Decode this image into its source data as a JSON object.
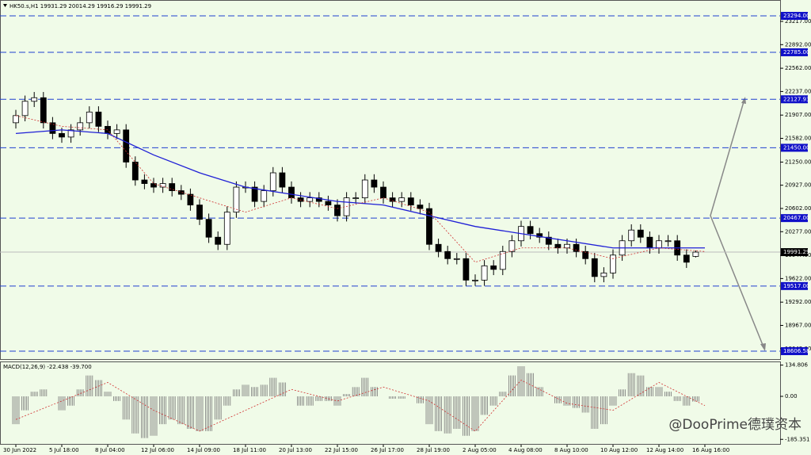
{
  "header": "HK50.s,H1  19931.29 20014.29 19916.29 19991.29",
  "watermark": "@DooPrime德璞资本",
  "chart_data": [
    {
      "type": "candlestick",
      "title": "HK50.s,H1  19931.29 20014.29 19916.29 19991.29",
      "xlabels": [
        "30 Jun 2022",
        "5 Jul 18:00",
        "8 Jul 04:00",
        "12 Jul 06:00",
        "14 Jul 09:00",
        "18 Jul 11:00",
        "20 Jul 13:00",
        "22 Jul 15:00",
        "26 Jul 17:00",
        "28 Jul 19:00",
        "2 Aug 05:00",
        "4 Aug 08:00",
        "8 Aug 10:00",
        "10 Aug 12:00",
        "12 Aug 14:00",
        "16 Aug 16:00"
      ],
      "ohlc": [
        [
          21800,
          21980,
          21720,
          21900
        ],
        [
          21900,
          22180,
          21820,
          22100
        ],
        [
          22100,
          22230,
          22020,
          22150
        ],
        [
          22150,
          22230,
          21720,
          21800
        ],
        [
          21800,
          21880,
          21570,
          21650
        ],
        [
          21650,
          21730,
          21520,
          21600
        ],
        [
          21600,
          21780,
          21520,
          21700
        ],
        [
          21700,
          21880,
          21620,
          21800
        ],
        [
          21800,
          22030,
          21720,
          21950
        ],
        [
          21950,
          22030,
          21670,
          21750
        ],
        [
          21750,
          21830,
          21570,
          21650
        ],
        [
          21650,
          21780,
          21570,
          21700
        ],
        [
          21700,
          21780,
          21170,
          21250
        ],
        [
          21250,
          21330,
          20920,
          21000
        ],
        [
          21000,
          21080,
          20870,
          20950
        ],
        [
          20950,
          21030,
          20820,
          20900
        ],
        [
          20900,
          21030,
          20820,
          20950
        ],
        [
          20950,
          21030,
          20770,
          20850
        ],
        [
          20850,
          20930,
          20720,
          20800
        ],
        [
          20800,
          20880,
          20570,
          20650
        ],
        [
          20650,
          20730,
          20370,
          20450
        ],
        [
          20450,
          20530,
          20120,
          20200
        ],
        [
          20200,
          20280,
          20020,
          20100
        ],
        [
          20100,
          20630,
          20020,
          20550
        ],
        [
          20550,
          20980,
          20470,
          20900
        ],
        [
          20900,
          20980,
          20820,
          20900
        ],
        [
          20900,
          20980,
          20620,
          20700
        ],
        [
          20700,
          20930,
          20620,
          20850
        ],
        [
          20850,
          21180,
          20770,
          21100
        ],
        [
          21100,
          21180,
          20820,
          20900
        ],
        [
          20900,
          20980,
          20670,
          20750
        ],
        [
          20750,
          20830,
          20620,
          20700
        ],
        [
          20700,
          20830,
          20620,
          20750
        ],
        [
          20750,
          20830,
          20620,
          20700
        ],
        [
          20700,
          20780,
          20570,
          20650
        ],
        [
          20650,
          20730,
          20420,
          20500
        ],
        [
          20500,
          20830,
          20420,
          20750
        ],
        [
          20750,
          20830,
          20670,
          20750
        ],
        [
          20750,
          21080,
          20670,
          21000
        ],
        [
          21000,
          21080,
          20820,
          20900
        ],
        [
          20900,
          20980,
          20670,
          20750
        ],
        [
          20750,
          20830,
          20620,
          20700
        ],
        [
          20700,
          20830,
          20620,
          20750
        ],
        [
          20750,
          20830,
          20570,
          20650
        ],
        [
          20650,
          20730,
          20520,
          20600
        ],
        [
          20600,
          20680,
          20020,
          20100
        ],
        [
          20100,
          20180,
          19920,
          20000
        ],
        [
          20000,
          20080,
          19820,
          19900
        ],
        [
          19900,
          19980,
          19820,
          19900
        ],
        [
          19900,
          19980,
          19520,
          19600
        ],
        [
          19600,
          19680,
          19520,
          19600
        ],
        [
          19600,
          19880,
          19520,
          19800
        ],
        [
          19800,
          19880,
          19670,
          19750
        ],
        [
          19750,
          20080,
          19670,
          20000
        ],
        [
          20000,
          20230,
          19920,
          20150
        ],
        [
          20150,
          20430,
          20070,
          20350
        ],
        [
          20350,
          20430,
          20170,
          20250
        ],
        [
          20250,
          20330,
          20120,
          20200
        ],
        [
          20200,
          20280,
          20020,
          20100
        ],
        [
          20100,
          20180,
          19970,
          20050
        ],
        [
          20050,
          20180,
          19970,
          20100
        ],
        [
          20100,
          20180,
          19920,
          20000
        ],
        [
          20000,
          20080,
          19820,
          19900
        ],
        [
          19900,
          19980,
          19570,
          19650
        ],
        [
          19650,
          19780,
          19570,
          19700
        ],
        [
          19700,
          20030,
          19620,
          19950
        ],
        [
          19950,
          20230,
          19870,
          20150
        ],
        [
          20150,
          20380,
          20070,
          20300
        ],
        [
          20300,
          20380,
          20120,
          20200
        ],
        [
          20200,
          20280,
          19970,
          20050
        ],
        [
          20050,
          20230,
          19970,
          20150
        ],
        [
          20150,
          20230,
          20070,
          20150
        ],
        [
          20150,
          20230,
          19870,
          19950
        ],
        [
          19950,
          20030,
          19770,
          19850
        ],
        [
          19931.29,
          20014.29,
          19916.29,
          19991.29
        ]
      ],
      "series": [
        {
          "color": "#1f1fd6",
          "values": [
            21650,
            21700,
            21650,
            21350,
            21100,
            20900,
            20800,
            20700,
            20650,
            20500,
            20350,
            20250,
            20150,
            20050,
            20050,
            20050
          ]
        },
        {
          "color": "#d03030",
          "values": [
            21900,
            21750,
            21700,
            20950,
            20750,
            20550,
            20750,
            20600,
            20750,
            20550,
            19850,
            20050,
            20050,
            19900,
            20050,
            20000
          ]
        }
      ],
      "ylim": [
        18507,
        23516
      ],
      "yticks": [
        {
          "value": 23217,
          "label": "23217.00"
        },
        {
          "value": 22892,
          "label": "22892.00"
        },
        {
          "value": 22562,
          "label": "22562.00"
        },
        {
          "value": 22237,
          "label": "22237.00"
        },
        {
          "value": 21907,
          "label": "21907.00"
        },
        {
          "value": 21582,
          "label": "21582.00"
        },
        {
          "value": 21250,
          "label": "21250.00"
        },
        {
          "value": 20927,
          "label": "20927.00"
        },
        {
          "value": 20602,
          "label": "20602.00"
        },
        {
          "value": 20277,
          "label": "20277.00"
        },
        {
          "value": 19947,
          "label": "19947.00"
        },
        {
          "value": 19622,
          "label": "19622.00"
        },
        {
          "value": 19292,
          "label": "19292.00"
        },
        {
          "value": 18967,
          "label": "18967.00"
        },
        {
          "value": 18642,
          "label": "18642.00"
        }
      ],
      "levels": [
        {
          "value": 23294,
          "label": "23294.00"
        },
        {
          "value": 22785,
          "label": "22785.00"
        },
        {
          "value": 22127.93,
          "label": "22127.93"
        },
        {
          "value": 21450,
          "label": "21450.00"
        },
        {
          "value": 20467,
          "label": "20467.00"
        },
        {
          "value": 19517,
          "label": "19517.00"
        },
        {
          "value": 18606.58,
          "label": "18606.58"
        }
      ],
      "current": {
        "value": 19991.29,
        "label": "19991.29"
      }
    },
    {
      "type": "macd",
      "title": "MACD(12,26,9) -22.438 -39.700",
      "values": [
        -120,
        -60,
        20,
        30,
        0,
        -60,
        -40,
        30,
        90,
        70,
        20,
        -20,
        -100,
        -160,
        -180,
        -170,
        -120,
        -100,
        -120,
        -140,
        -150,
        -150,
        -100,
        -40,
        30,
        50,
        40,
        50,
        80,
        60,
        0,
        -40,
        -40,
        -20,
        -20,
        -40,
        10,
        40,
        80,
        40,
        0,
        -10,
        -10,
        0,
        -30,
        -120,
        -150,
        -160,
        -140,
        -170,
        -150,
        -80,
        -40,
        20,
        90,
        130,
        100,
        40,
        0,
        -30,
        -40,
        -50,
        -70,
        -140,
        -120,
        -40,
        30,
        100,
        90,
        40,
        40,
        20,
        -20,
        -40,
        -22.438
      ],
      "signal": {
        "color": "#d03030",
        "values": [
          -100,
          -20,
          60,
          -60,
          -150,
          -60,
          30,
          -20,
          40,
          -20,
          -150,
          70,
          -30,
          -60,
          60,
          -39.7
        ]
      },
      "ylim": [
        -205,
        147
      ],
      "yticks": [
        {
          "value": 134.806,
          "label": "134.806"
        },
        {
          "value": 0,
          "label": "0.00"
        },
        {
          "value": -185.351,
          "label": "-185.351"
        }
      ]
    }
  ]
}
